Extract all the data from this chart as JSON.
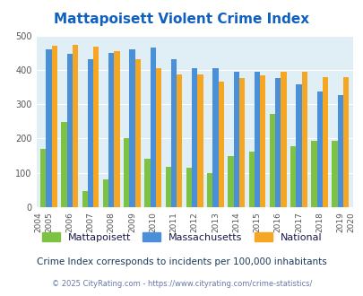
{
  "title": "Mattapoisett Violent Crime Index",
  "years": [
    2005,
    2006,
    2007,
    2008,
    2009,
    2010,
    2011,
    2012,
    2013,
    2014,
    2015,
    2016,
    2017,
    2018,
    2019
  ],
  "mattapoisett": [
    170,
    248,
    48,
    80,
    202,
    142,
    118,
    115,
    100,
    148,
    163,
    272,
    178,
    193,
    193
  ],
  "massachusetts": [
    460,
    448,
    430,
    450,
    460,
    465,
    430,
    405,
    405,
    395,
    395,
    377,
    357,
    337,
    327
  ],
  "national": [
    470,
    472,
    467,
    455,
    430,
    405,
    387,
    387,
    365,
    375,
    383,
    395,
    395,
    380,
    380
  ],
  "mattapoisett_color": "#7DC242",
  "massachusetts_color": "#4A90D9",
  "national_color": "#F5A623",
  "bg_color": "#E0EEF5",
  "title_color": "#1060C0",
  "ylabel_max": 500,
  "yticks": [
    0,
    100,
    200,
    300,
    400,
    500
  ],
  "legend_text_color": "#1A1A4A",
  "footnote1": "Crime Index corresponds to incidents per 100,000 inhabitants",
  "footnote2": "© 2025 CityRating.com - https://www.cityrating.com/crime-statistics/",
  "footnote1_color": "#1A3A5C",
  "footnote2_color": "#6878A8"
}
